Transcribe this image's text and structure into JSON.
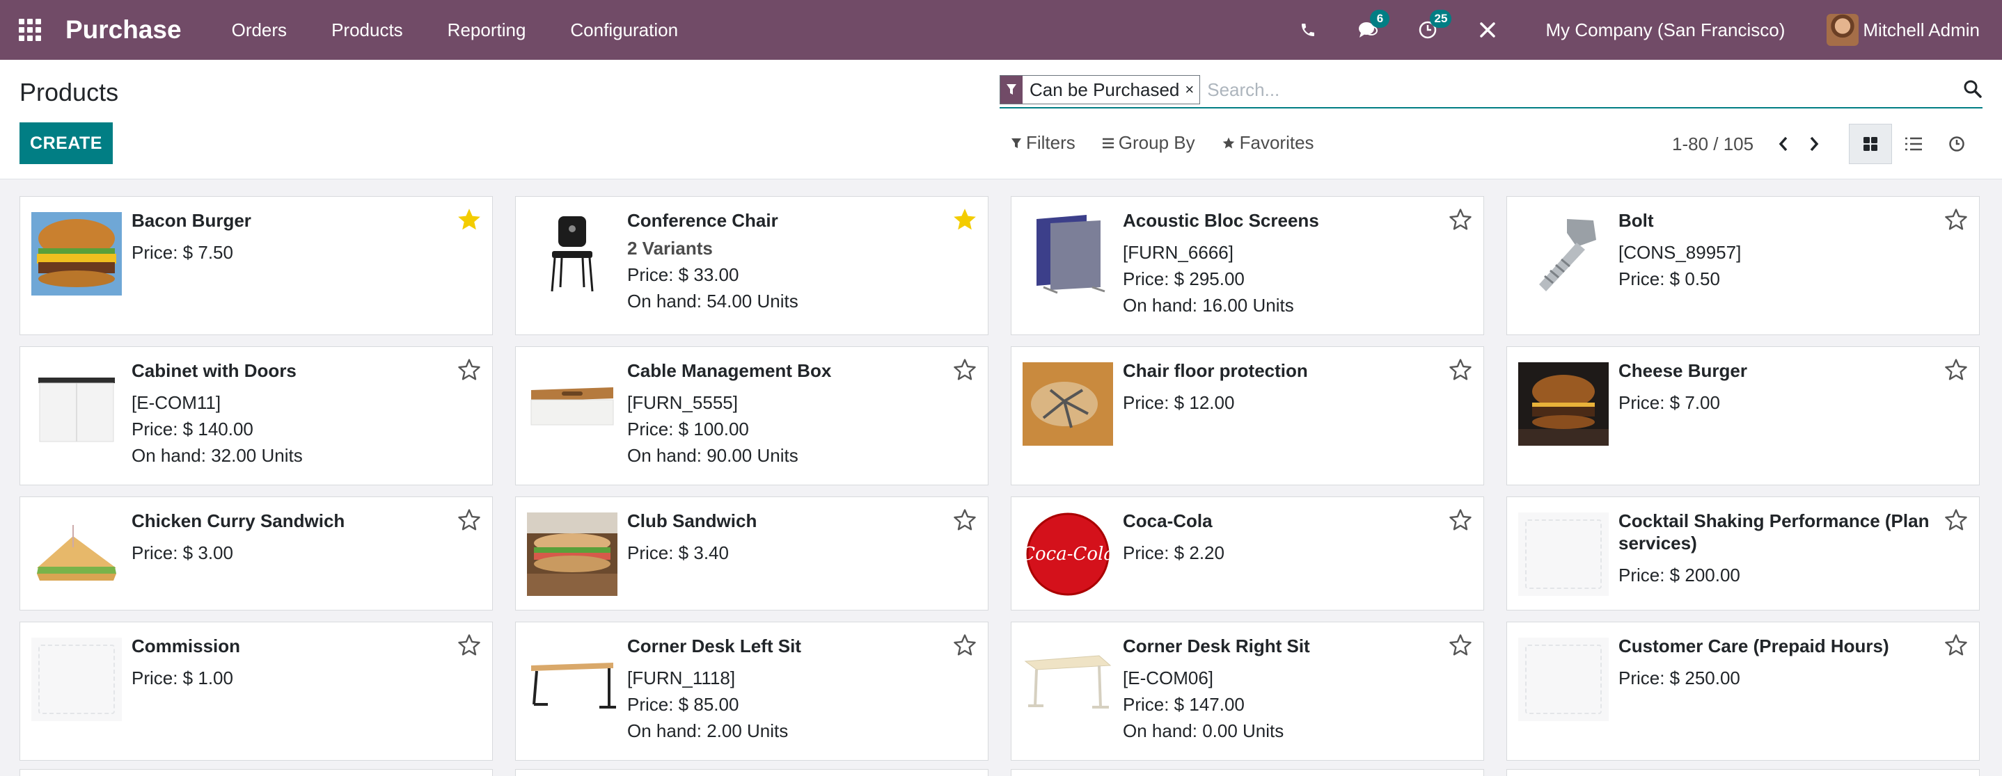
{
  "navbar": {
    "brand": "Purchase",
    "menu": [
      "Orders",
      "Products",
      "Reporting",
      "Configuration"
    ],
    "messages_count": "6",
    "activities_count": "25",
    "company": "My Company (San Francisco)",
    "user": "Mitchell Admin"
  },
  "control": {
    "title": "Products",
    "create_label": "CREATE",
    "facet": "Can be Purchased",
    "facet_remove": "×",
    "search_placeholder": "Search...",
    "filters_label": "Filters",
    "groupby_label": "Group By",
    "favorites_label": "Favorites",
    "pager": "1-80 / 105"
  },
  "colors": {
    "brand": "#714b67",
    "accent": "#017e84",
    "star_active": "#f3cc00"
  },
  "products": [
    {
      "name": "Bacon Burger",
      "variants": "",
      "ref": "",
      "price": "Price: $ 7.50",
      "onhand": "",
      "favorite": true,
      "image": "burger"
    },
    {
      "name": "Conference Chair",
      "variants": "2 Variants",
      "ref": "",
      "price": "Price: $ 33.00",
      "onhand": "On hand: 54.00 Units",
      "favorite": true,
      "image": "chair"
    },
    {
      "name": "Acoustic Bloc Screens",
      "variants": "",
      "ref": "[FURN_6666]",
      "price": "Price: $ 295.00",
      "onhand": "On hand: 16.00 Units",
      "favorite": false,
      "image": "screens"
    },
    {
      "name": "Bolt",
      "variants": "",
      "ref": "[CONS_89957]",
      "price": "Price: $ 0.50",
      "onhand": "",
      "favorite": false,
      "image": "bolt"
    },
    {
      "name": "Cabinet with Doors",
      "variants": "",
      "ref": "[E-COM11]",
      "price": "Price: $ 140.00",
      "onhand": "On hand: 32.00 Units",
      "favorite": false,
      "image": "cabinet"
    },
    {
      "name": "Cable Management Box",
      "variants": "",
      "ref": "[FURN_5555]",
      "price": "Price: $ 100.00",
      "onhand": "On hand: 90.00 Units",
      "favorite": false,
      "image": "cablebox"
    },
    {
      "name": "Chair floor protection",
      "variants": "",
      "ref": "",
      "price": "Price: $ 12.00",
      "onhand": "",
      "favorite": false,
      "image": "floormat"
    },
    {
      "name": "Cheese Burger",
      "variants": "",
      "ref": "",
      "price": "Price: $ 7.00",
      "onhand": "",
      "favorite": false,
      "image": "cheeseburger"
    },
    {
      "name": "Chicken Curry Sandwich",
      "variants": "",
      "ref": "",
      "price": "Price: $ 3.00",
      "onhand": "",
      "favorite": false,
      "image": "sandwich"
    },
    {
      "name": "Club Sandwich",
      "variants": "",
      "ref": "",
      "price": "Price: $ 3.40",
      "onhand": "",
      "favorite": false,
      "image": "clubsandwich"
    },
    {
      "name": "Coca-Cola",
      "variants": "",
      "ref": "",
      "price": "Price: $ 2.20",
      "onhand": "",
      "favorite": false,
      "image": "cocacola"
    },
    {
      "name": "Cocktail Shaking Performance (Plan services)",
      "variants": "",
      "ref": "",
      "price": "Price: $ 200.00",
      "onhand": "",
      "favorite": false,
      "image": "placeholder"
    },
    {
      "name": "Commission",
      "variants": "",
      "ref": "",
      "price": "Price: $ 1.00",
      "onhand": "",
      "favorite": false,
      "image": "placeholder"
    },
    {
      "name": "Corner Desk Left Sit",
      "variants": "",
      "ref": "[FURN_1118]",
      "price": "Price: $ 85.00",
      "onhand": "On hand: 2.00 Units",
      "favorite": false,
      "image": "deskleft"
    },
    {
      "name": "Corner Desk Right Sit",
      "variants": "",
      "ref": "[E-COM06]",
      "price": "Price: $ 147.00",
      "onhand": "On hand: 0.00 Units",
      "favorite": false,
      "image": "deskright"
    },
    {
      "name": "Customer Care (Prepaid Hours)",
      "variants": "",
      "ref": "",
      "price": "Price: $ 250.00",
      "onhand": "",
      "favorite": false,
      "image": "placeholder"
    }
  ]
}
